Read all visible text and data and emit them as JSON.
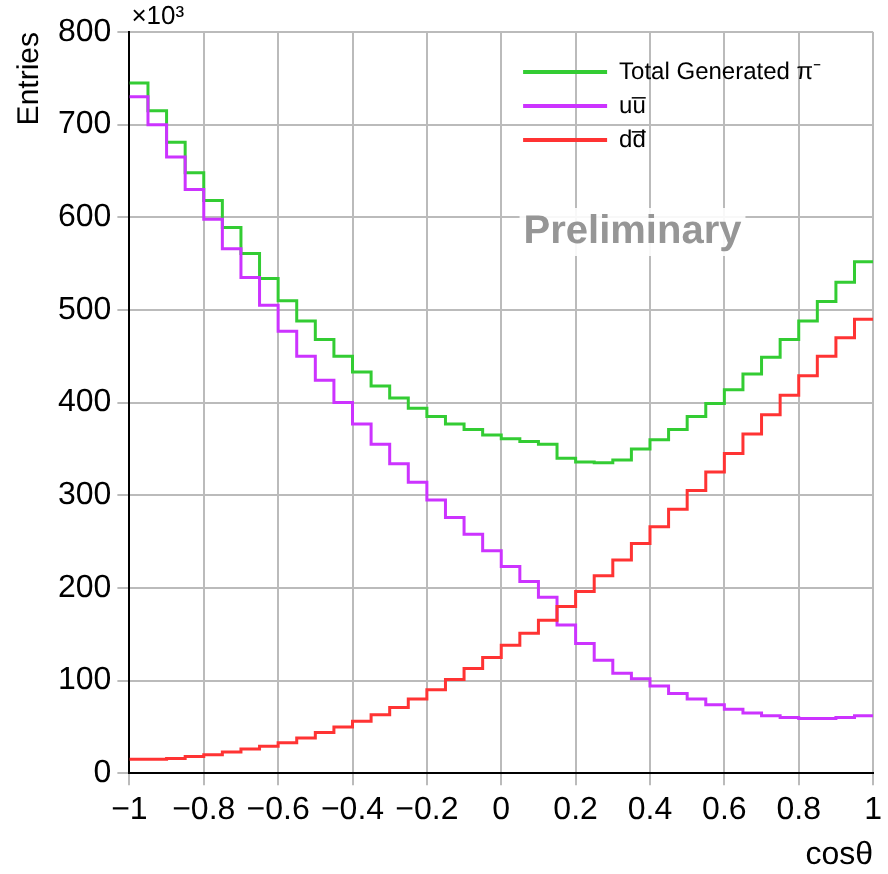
{
  "chart_data": {
    "type": "histogram",
    "xlabel": "cosθ",
    "ylabel": "Entries",
    "annotations": [
      "×10³",
      "Preliminary"
    ],
    "bins": [
      -1,
      -0.95,
      -0.9,
      -0.85,
      -0.8,
      -0.75,
      -0.7,
      -0.65,
      -0.6,
      -0.55,
      -0.5,
      -0.45,
      -0.4,
      -0.35,
      -0.3,
      -0.25,
      -0.2,
      -0.15,
      -0.1,
      -0.05,
      0,
      0.05,
      0.1,
      0.15,
      0.2,
      0.25,
      0.3,
      0.35,
      0.4,
      0.45,
      0.5,
      0.55,
      0.6,
      0.65,
      0.7,
      0.75,
      0.8,
      0.85,
      0.9,
      0.95,
      1
    ],
    "series": [
      {
        "name": "Total Generated π⁻",
        "color": "#33cc33",
        "values": [
          745,
          715,
          681,
          648,
          618,
          589,
          561,
          534,
          510,
          488,
          468,
          450,
          433,
          418,
          405,
          394,
          385,
          377,
          371,
          365,
          361,
          358,
          355,
          340,
          336,
          335,
          338,
          350,
          360,
          371,
          385,
          399,
          414,
          431,
          449,
          468,
          488,
          509,
          530,
          552
        ]
      },
      {
        "name": "uu̅",
        "color": "#cc33ff",
        "values": [
          730,
          700,
          665,
          630,
          598,
          566,
          535,
          505,
          477,
          450,
          424,
          400,
          377,
          355,
          334,
          314,
          295,
          276,
          258,
          240,
          223,
          207,
          190,
          160,
          140,
          122,
          108,
          102,
          94,
          86,
          80,
          74,
          69,
          65,
          62,
          60,
          59,
          59,
          60,
          62
        ]
      },
      {
        "name": "dd̅",
        "color": "#ff3333",
        "values": [
          15,
          15,
          16,
          18,
          20,
          23,
          26,
          29,
          33,
          38,
          44,
          50,
          56,
          63,
          71,
          80,
          90,
          101,
          113,
          125,
          138,
          151,
          165,
          180,
          196,
          213,
          230,
          248,
          266,
          285,
          305,
          325,
          345,
          366,
          387,
          408,
          429,
          450,
          470,
          490
        ]
      }
    ],
    "xlim": [
      -1,
      1
    ],
    "ylim": [
      0,
      800
    ],
    "xticks": [
      {
        "value": -1,
        "label": "−1"
      },
      {
        "value": -0.8,
        "label": "−0.8"
      },
      {
        "value": -0.6,
        "label": "−0.6"
      },
      {
        "value": -0.4,
        "label": "−0.4"
      },
      {
        "value": -0.2,
        "label": "−0.2"
      },
      0,
      0.2,
      0.4,
      0.6,
      0.8,
      1
    ],
    "yticks": [
      0,
      100,
      200,
      300,
      400,
      500,
      600,
      700,
      800
    ],
    "grid": true,
    "legend": "top right"
  }
}
